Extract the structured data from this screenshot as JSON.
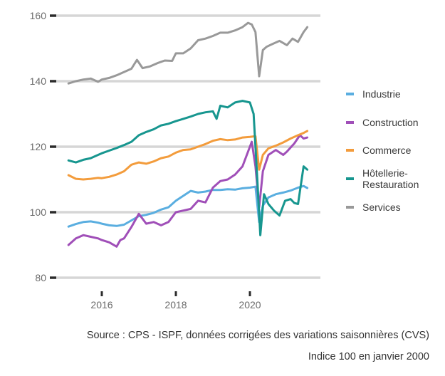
{
  "chart_data": {
    "type": "line",
    "title": "",
    "xlabel": "",
    "ylabel": "",
    "xlim": [
      2015.1,
      2021.55
    ],
    "ylim": [
      80,
      160
    ],
    "yticks": [
      80,
      100,
      120,
      140,
      160
    ],
    "xticks": [
      2016,
      2018,
      2020
    ],
    "ytick_labels": [
      "80",
      "100",
      "120",
      "140",
      "160"
    ],
    "xtick_labels": [
      "2016",
      "2018",
      "2020"
    ],
    "grid": "horizontal",
    "legend_position": "right",
    "series": [
      {
        "name": "Industrie",
        "color": "#5aaee0",
        "x": [
          2015.1,
          2015.3,
          2015.5,
          2015.7,
          2015.9,
          2016.0,
          2016.2,
          2016.4,
          2016.6,
          2016.8,
          2017.0,
          2017.2,
          2017.4,
          2017.6,
          2017.8,
          2018.0,
          2018.2,
          2018.4,
          2018.6,
          2018.8,
          2019.0,
          2019.2,
          2019.4,
          2019.6,
          2019.8,
          2020.0,
          2020.15,
          2020.25,
          2020.35,
          2020.5,
          2020.7,
          2020.9,
          2021.1,
          2021.3,
          2021.45,
          2021.55
        ],
        "values": [
          95.6,
          96.4,
          97.0,
          97.2,
          96.8,
          96.5,
          96.0,
          95.8,
          96.2,
          97.5,
          98.8,
          99.2,
          99.8,
          100.8,
          101.5,
          103.5,
          105.0,
          106.5,
          106.0,
          106.3,
          106.8,
          106.8,
          107.0,
          106.9,
          107.3,
          107.5,
          107.8,
          97.0,
          102.0,
          104.5,
          105.5,
          106.0,
          106.6,
          107.5,
          108.0,
          107.4
        ]
      },
      {
        "name": "Construction",
        "color": "#a04fb8",
        "x": [
          2015.1,
          2015.3,
          2015.5,
          2015.7,
          2015.9,
          2016.0,
          2016.2,
          2016.4,
          2016.5,
          2016.6,
          2016.8,
          2017.0,
          2017.2,
          2017.4,
          2017.6,
          2017.8,
          2018.0,
          2018.2,
          2018.4,
          2018.6,
          2018.8,
          2019.0,
          2019.2,
          2019.4,
          2019.6,
          2019.8,
          2019.95,
          2020.05,
          2020.15,
          2020.25,
          2020.35,
          2020.5,
          2020.7,
          2020.9,
          2021.0,
          2021.2,
          2021.35,
          2021.45,
          2021.55
        ],
        "values": [
          90.0,
          92.0,
          93.0,
          92.5,
          92.0,
          91.5,
          90.8,
          89.5,
          91.5,
          92.0,
          95.5,
          99.5,
          96.5,
          97.0,
          96.0,
          97.0,
          100.0,
          100.5,
          101.0,
          103.5,
          103.0,
          107.5,
          109.5,
          110.0,
          111.5,
          114.0,
          118.5,
          121.5,
          114.0,
          101.5,
          112.5,
          117.5,
          119.0,
          117.5,
          118.5,
          121.0,
          123.5,
          122.5,
          122.8
        ]
      },
      {
        "name": "Commerce",
        "color": "#f39c3c",
        "x": [
          2015.1,
          2015.3,
          2015.5,
          2015.7,
          2015.9,
          2016.0,
          2016.2,
          2016.4,
          2016.6,
          2016.8,
          2017.0,
          2017.2,
          2017.4,
          2017.6,
          2017.8,
          2018.0,
          2018.2,
          2018.4,
          2018.6,
          2018.8,
          2019.0,
          2019.2,
          2019.4,
          2019.6,
          2019.8,
          2020.0,
          2020.15,
          2020.25,
          2020.35,
          2020.5,
          2020.7,
          2020.9,
          2021.1,
          2021.3,
          2021.45,
          2021.55
        ],
        "values": [
          111.3,
          110.2,
          110.0,
          110.2,
          110.5,
          110.4,
          110.8,
          111.5,
          112.5,
          114.5,
          115.2,
          114.8,
          115.5,
          116.5,
          117.0,
          118.2,
          119.0,
          119.2,
          120.0,
          120.8,
          121.8,
          122.3,
          122.0,
          122.2,
          122.8,
          123.0,
          123.2,
          113.0,
          117.5,
          119.5,
          120.3,
          121.3,
          122.5,
          123.5,
          124.2,
          124.8
        ]
      },
      {
        "name": "Hôtellerie-Restauration",
        "color": "#17968f",
        "x": [
          2015.1,
          2015.3,
          2015.5,
          2015.7,
          2015.9,
          2016.0,
          2016.2,
          2016.4,
          2016.6,
          2016.8,
          2017.0,
          2017.2,
          2017.4,
          2017.6,
          2017.8,
          2018.0,
          2018.2,
          2018.4,
          2018.6,
          2018.8,
          2019.0,
          2019.1,
          2019.2,
          2019.4,
          2019.6,
          2019.8,
          2020.0,
          2020.1,
          2020.2,
          2020.28,
          2020.38,
          2020.5,
          2020.65,
          2020.8,
          2020.95,
          2021.1,
          2021.2,
          2021.3,
          2021.45,
          2021.55
        ],
        "values": [
          115.8,
          115.2,
          116.0,
          116.5,
          117.5,
          118.0,
          118.8,
          119.6,
          120.5,
          121.5,
          123.5,
          124.5,
          125.3,
          126.5,
          127.0,
          127.8,
          128.5,
          129.2,
          130.0,
          130.5,
          130.8,
          128.5,
          132.5,
          132.0,
          133.5,
          134.0,
          133.5,
          130.0,
          110.0,
          93.0,
          105.5,
          102.5,
          100.5,
          99.0,
          103.5,
          104.0,
          102.8,
          102.5,
          114.0,
          113.0
        ]
      },
      {
        "name": "Services",
        "color": "#999999",
        "x": [
          2015.1,
          2015.3,
          2015.5,
          2015.7,
          2015.9,
          2016.0,
          2016.2,
          2016.4,
          2016.6,
          2016.8,
          2016.95,
          2017.1,
          2017.3,
          2017.5,
          2017.7,
          2017.9,
          2018.0,
          2018.2,
          2018.4,
          2018.6,
          2018.8,
          2019.0,
          2019.2,
          2019.4,
          2019.6,
          2019.8,
          2019.95,
          2020.05,
          2020.15,
          2020.25,
          2020.35,
          2020.45,
          2020.6,
          2020.8,
          2021.0,
          2021.15,
          2021.3,
          2021.45,
          2021.55
        ],
        "values": [
          139.3,
          140.0,
          140.5,
          140.8,
          139.8,
          140.5,
          141.0,
          141.8,
          142.8,
          143.8,
          146.5,
          144.0,
          144.5,
          145.5,
          146.3,
          146.2,
          148.5,
          148.5,
          150.0,
          152.5,
          153.0,
          153.8,
          154.8,
          154.8,
          155.5,
          156.5,
          157.8,
          157.3,
          155.0,
          141.5,
          149.5,
          150.5,
          151.3,
          152.3,
          151.0,
          153.0,
          152.0,
          155.0,
          156.5
        ]
      }
    ]
  },
  "legend": {
    "items": [
      {
        "label": "Industrie",
        "color": "#5aaee0"
      },
      {
        "label": "Construction",
        "color": "#a04fb8"
      },
      {
        "label": "Commerce",
        "color": "#f39c3c"
      },
      {
        "label": "Hôtellerie-\nRestauration",
        "color": "#17968f"
      },
      {
        "label": "Services",
        "color": "#999999"
      }
    ]
  },
  "footer": {
    "source": "Source : CPS - ISPF, données corrigées des variations saisonnières (CVS)",
    "note": "Indice 100 en janvier 2000"
  }
}
